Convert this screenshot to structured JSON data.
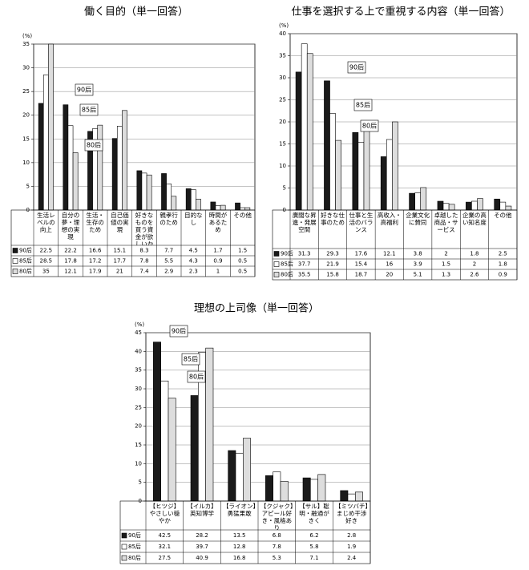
{
  "chart_data": [
    {
      "type": "bar",
      "title": "働く目的（単一回答）",
      "ylabel": "(%)",
      "categories": [
        "生活レベルの向上",
        "自分の夢・理想の実現",
        "生活・生存のため",
        "自己価値の実現",
        "好きなものを買う資金が欲しいから",
        "親孝行のため",
        "目的なし",
        "時間があるため",
        "その他"
      ],
      "series": [
        {
          "name": "90后",
          "color": "#1a1a1a",
          "values": [
            22.5,
            22.2,
            16.6,
            15.1,
            8.3,
            7.7,
            4.5,
            1.7,
            1.5
          ]
        },
        {
          "name": "85后",
          "color": "#ffffff",
          "values": [
            28.5,
            17.8,
            17.2,
            17.7,
            7.8,
            5.5,
            4.3,
            0.9,
            0.5
          ]
        },
        {
          "name": "80后",
          "color": "#dddddd",
          "values": [
            35,
            12.1,
            17.9,
            21,
            7.4,
            2.9,
            2.3,
            1,
            0.5
          ]
        }
      ],
      "ylim": [
        0,
        35
      ],
      "yticks": [
        0,
        5,
        10,
        15,
        20,
        25,
        30,
        35
      ],
      "annotations": [
        "90后",
        "85后",
        "80后"
      ]
    },
    {
      "type": "bar",
      "title": "仕事を選択する上で重視する内容（単一回答）",
      "ylabel": "(%)",
      "categories": [
        "廣闊な昇進・発展空間",
        "好きな仕事のため",
        "仕事と生活のバランス",
        "高收入・高福利",
        "企業文化に賛同",
        "卓越した商品・サービス",
        "企業の高い知名度",
        "その他"
      ],
      "series": [
        {
          "name": "90后",
          "color": "#1a1a1a",
          "values": [
            31.3,
            29.3,
            17.6,
            12.1,
            3.8,
            2,
            1.8,
            2.5
          ]
        },
        {
          "name": "85后",
          "color": "#ffffff",
          "values": [
            37.7,
            21.9,
            15.4,
            16,
            3.9,
            1.5,
            2,
            1.8
          ]
        },
        {
          "name": "80后",
          "color": "#dddddd",
          "values": [
            35.5,
            15.8,
            18.7,
            20,
            5.1,
            1.3,
            2.6,
            0.9
          ]
        }
      ],
      "ylim": [
        0,
        40
      ],
      "yticks": [
        0,
        5,
        10,
        15,
        20,
        25,
        30,
        35,
        40
      ],
      "annotations": [
        "90后",
        "85后",
        "80后"
      ]
    },
    {
      "type": "bar",
      "title": "理想の上司像（単一回答）",
      "ylabel": "(%)",
      "categories": [
        "【ヒツジ】やさしい穏やか",
        "【イルカ】英知博学",
        "【ライオン】勇猛果敢",
        "【クジャク】アピール好き・風格あり",
        "【サル】聡明・融通がきく",
        "【ミツバチ】まじめ干渉好き"
      ],
      "series": [
        {
          "name": "90后",
          "color": "#1a1a1a",
          "values": [
            42.5,
            28.2,
            13.5,
            6.8,
            6.2,
            2.8
          ]
        },
        {
          "name": "85后",
          "color": "#ffffff",
          "values": [
            32.1,
            39.7,
            12.8,
            7.8,
            5.8,
            1.9
          ]
        },
        {
          "name": "80后",
          "color": "#dddddd",
          "values": [
            27.5,
            40.9,
            16.8,
            5.3,
            7.1,
            2.4
          ]
        }
      ],
      "ylim": [
        0,
        45
      ],
      "yticks": [
        0,
        5,
        10,
        15,
        20,
        25,
        30,
        35,
        40,
        45
      ],
      "annotations": [
        "90后",
        "85后",
        "80后"
      ]
    }
  ]
}
